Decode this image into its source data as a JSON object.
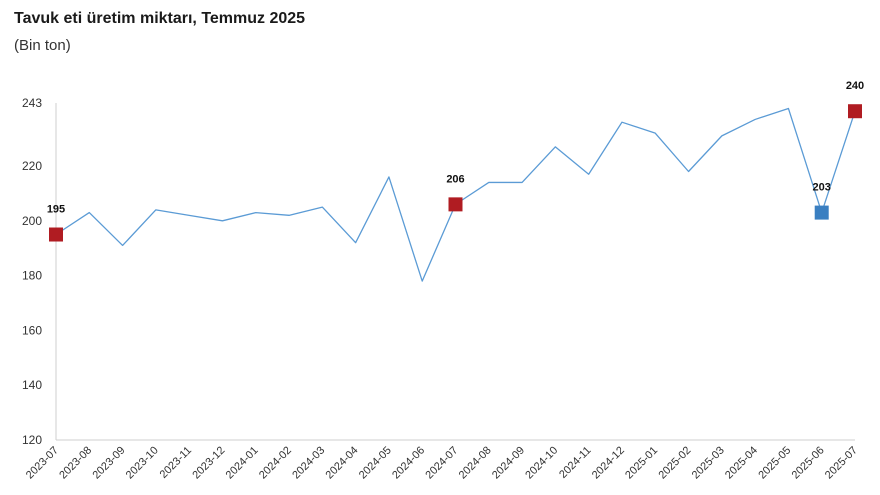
{
  "header": {
    "title": "Tavuk eti üretim miktarı, Temmuz 2025",
    "subtitle": "(Bin ton)"
  },
  "colors": {
    "line": "#5b9bd5",
    "highlight": "#b01c22",
    "accent_point": "#3a7fc1",
    "axis": "#cfcfcf"
  },
  "chart_data": {
    "type": "line",
    "title": "Tavuk eti üretim miktarı, Temmuz 2025",
    "subtitle": "(Bin ton)",
    "categories": [
      "2023-07",
      "2023-08",
      "2023-09",
      "2023-10",
      "2023-11",
      "2023-12",
      "2024-01",
      "2024-02",
      "2024-03",
      "2024-04",
      "2024-05",
      "2024-06",
      "2024-07",
      "2024-08",
      "2024-09",
      "2024-10",
      "2024-11",
      "2024-12",
      "2025-01",
      "2025-02",
      "2025-03",
      "2025-04",
      "2025-05",
      "2025-06",
      "2025-07"
    ],
    "series": [
      {
        "values": [
          195,
          203,
          191,
          204,
          202,
          200,
          203,
          202,
          205,
          192,
          216,
          178,
          206,
          214,
          214,
          227,
          217,
          236,
          232,
          218,
          231,
          237,
          241,
          203,
          240
        ]
      }
    ],
    "yticks": [
      120,
      140,
      160,
      180,
      200,
      220,
      243
    ],
    "ylim": [
      120,
      243
    ],
    "grid": false,
    "highlighted_points": [
      {
        "category": "2023-07",
        "label": "195",
        "color": "#b01c22"
      },
      {
        "category": "2024-07",
        "label": "206",
        "color": "#b01c22"
      },
      {
        "category": "2025-06",
        "label": "203",
        "color": "#3a7fc1"
      },
      {
        "category": "2025-07",
        "label": "240",
        "color": "#b01c22"
      }
    ]
  }
}
